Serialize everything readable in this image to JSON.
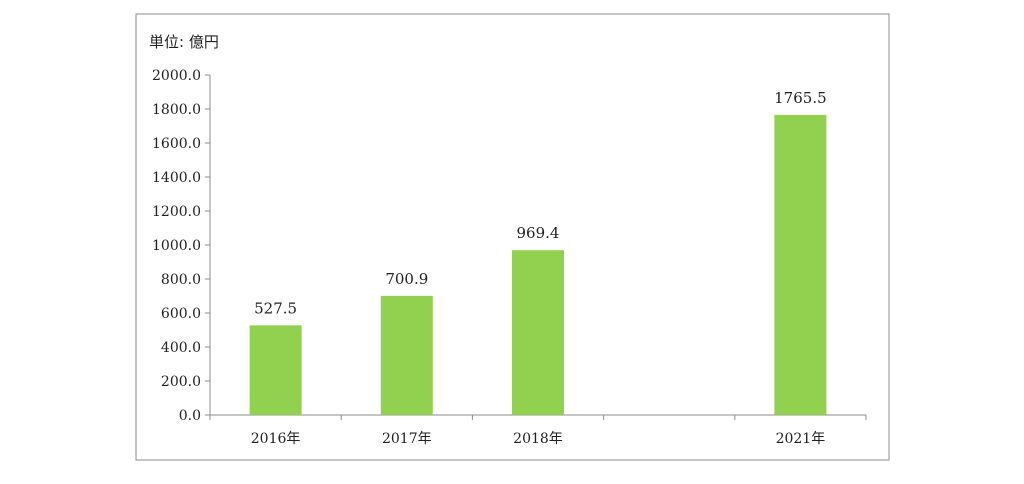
{
  "chart_data": {
    "type": "bar",
    "unit_label": "単位: 億円",
    "categories": [
      "2016年",
      "2017年",
      "2018年",
      "",
      "2021年"
    ],
    "values": [
      527.5,
      700.9,
      969.4,
      null,
      1765.5
    ],
    "data_labels": [
      "527.5",
      "700.9",
      "969.4",
      "",
      "1765.5"
    ],
    "ylim": [
      0,
      2000
    ],
    "yticks": [
      0,
      200,
      400,
      600,
      800,
      1000,
      1200,
      1400,
      1600,
      1800,
      2000
    ],
    "ytick_labels": [
      "0.0",
      "200.0",
      "400.0",
      "600.0",
      "800.0",
      "1000.0",
      "1200.0",
      "1400.0",
      "1600.0",
      "1800.0",
      "2000.0"
    ],
    "bar_color": "#92d050",
    "grid": false,
    "legend": "none"
  }
}
